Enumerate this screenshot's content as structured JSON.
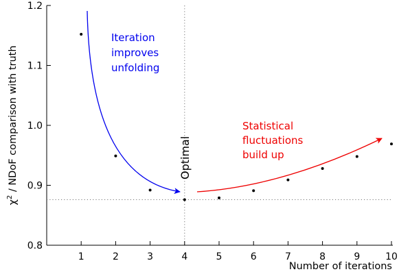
{
  "chart_data": {
    "type": "scatter",
    "xlabel": "Number of iterations",
    "ylabel": "χ² / NDoF comparison with truth",
    "ylabel_parts": {
      "chi": "χ",
      "sup": "2",
      "rest": " / NDoF comparison with truth"
    },
    "xlim": [
      0,
      10
    ],
    "ylim": [
      0.8,
      1.2
    ],
    "xticks": [
      "1",
      "2",
      "3",
      "4",
      "5",
      "6",
      "7",
      "8",
      "9",
      "10"
    ],
    "yticks": [
      "0.8",
      "0.9",
      "1.0",
      "1.1",
      "1.2"
    ],
    "x": [
      1,
      2,
      3,
      4,
      5,
      6,
      7,
      8,
      9,
      10
    ],
    "y": [
      1.152,
      0.949,
      0.892,
      0.876,
      0.879,
      0.891,
      0.909,
      0.928,
      0.948,
      0.969
    ],
    "reference_lines": {
      "vertical_x": 4,
      "horizontal_y": 0.876,
      "style": "dotted"
    },
    "annotations": {
      "iteration": [
        "Iteration",
        "improves",
        "unfolding"
      ],
      "statistical": [
        "Statistical",
        "fluctuations",
        "build up"
      ],
      "optimal": "Optimal"
    },
    "colors": {
      "blue": "#0000ee",
      "red": "#ee0000",
      "points": "#000000"
    },
    "grid": false
  }
}
